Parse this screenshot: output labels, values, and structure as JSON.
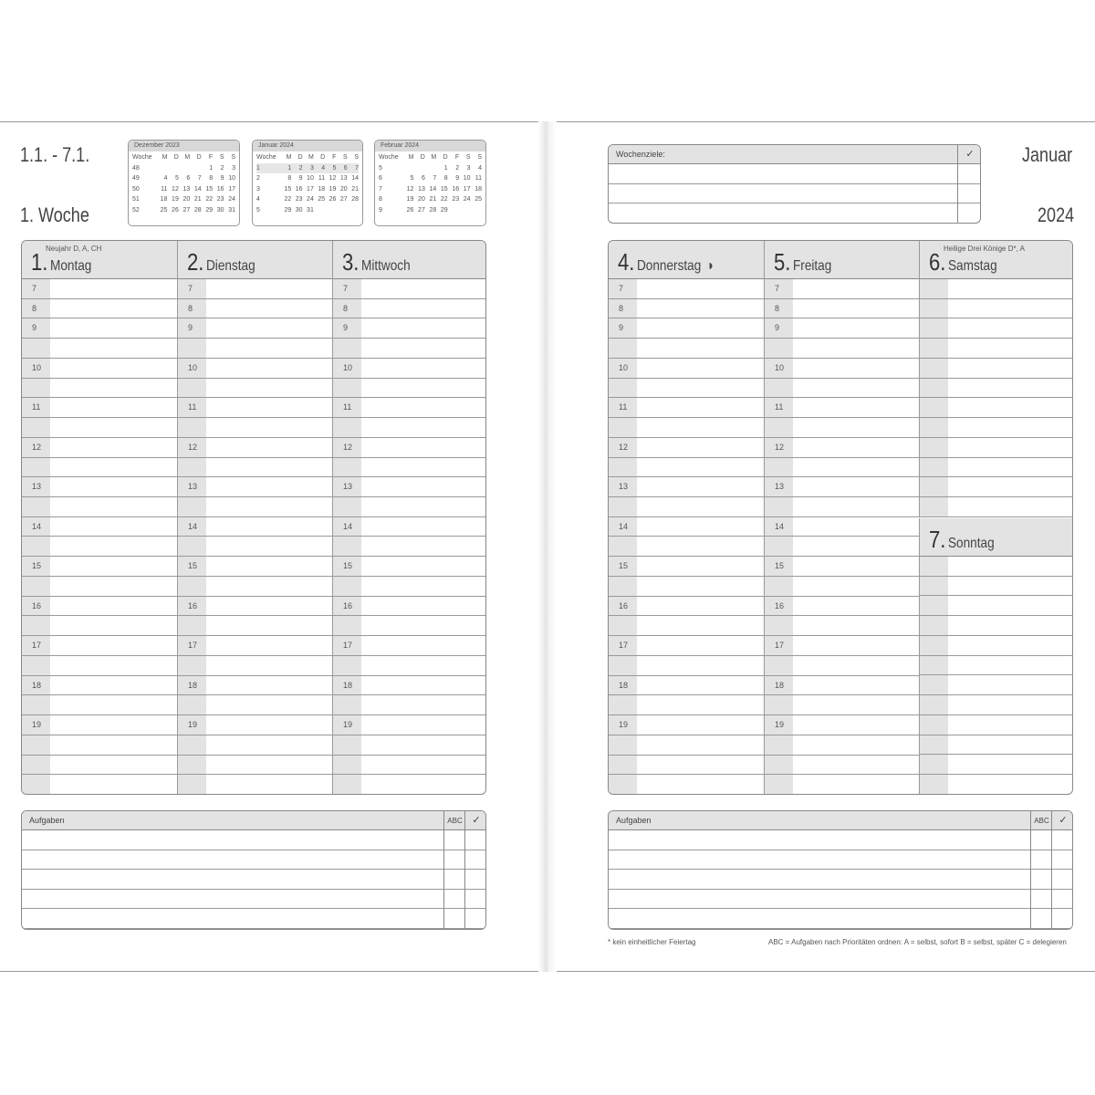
{
  "left": {
    "range": "1.1. - 7.1.",
    "week": "1. Woche",
    "minicals": [
      {
        "title": "Dezember 2023",
        "head": [
          "Woche",
          "M",
          "D",
          "M",
          "D",
          "F",
          "S",
          "S"
        ],
        "rows": [
          [
            "48",
            "",
            "",
            "",
            "",
            "1",
            "2",
            "3"
          ],
          [
            "49",
            "4",
            "5",
            "6",
            "7",
            "8",
            "9",
            "10"
          ],
          [
            "50",
            "11",
            "12",
            "13",
            "14",
            "15",
            "16",
            "17"
          ],
          [
            "51",
            "18",
            "19",
            "20",
            "21",
            "22",
            "23",
            "24"
          ],
          [
            "52",
            "25",
            "26",
            "27",
            "28",
            "29",
            "30",
            "31"
          ]
        ],
        "highlight": -1
      },
      {
        "title": "Januar 2024",
        "head": [
          "Woche",
          "M",
          "D",
          "M",
          "D",
          "F",
          "S",
          "S"
        ],
        "rows": [
          [
            "1",
            "1",
            "2",
            "3",
            "4",
            "5",
            "6",
            "7"
          ],
          [
            "2",
            "8",
            "9",
            "10",
            "11",
            "12",
            "13",
            "14"
          ],
          [
            "3",
            "15",
            "16",
            "17",
            "18",
            "19",
            "20",
            "21"
          ],
          [
            "4",
            "22",
            "23",
            "24",
            "25",
            "26",
            "27",
            "28"
          ],
          [
            "5",
            "29",
            "30",
            "31",
            "",
            "",
            "",
            ""
          ]
        ],
        "highlight": 0
      },
      {
        "title": "Februar 2024",
        "head": [
          "Woche",
          "M",
          "D",
          "M",
          "D",
          "F",
          "S",
          "S"
        ],
        "rows": [
          [
            "5",
            "",
            "",
            "",
            "1",
            "2",
            "3",
            "4"
          ],
          [
            "6",
            "5",
            "6",
            "7",
            "8",
            "9",
            "10",
            "11"
          ],
          [
            "7",
            "12",
            "13",
            "14",
            "15",
            "16",
            "17",
            "18"
          ],
          [
            "8",
            "19",
            "20",
            "21",
            "22",
            "23",
            "24",
            "25"
          ],
          [
            "9",
            "26",
            "27",
            "28",
            "29",
            "",
            "",
            ""
          ]
        ],
        "highlight": -1
      }
    ],
    "days": [
      {
        "num": "1.",
        "name": "Montag",
        "holiday": "Neujahr D, A, CH",
        "symbol": ""
      },
      {
        "num": "2.",
        "name": "Dienstag",
        "holiday": "",
        "symbol": ""
      },
      {
        "num": "3.",
        "name": "Mittwoch",
        "holiday": "",
        "symbol": ""
      }
    ],
    "tasks": {
      "label": "Aufgaben",
      "abc": "ABC",
      "check": "✓"
    }
  },
  "right": {
    "goals": {
      "label": "Wochenziele:",
      "check": "✓"
    },
    "month": "Januar",
    "year": "2024",
    "days": [
      {
        "num": "4.",
        "name": "Donnerstag",
        "holiday": "",
        "symbol": "◑"
      },
      {
        "num": "5.",
        "name": "Freitag",
        "holiday": "",
        "symbol": ""
      },
      {
        "num": "6.",
        "name": "Samstag",
        "holiday": "Heilige Drei Könige D*, A",
        "symbol": ""
      },
      {
        "num": "7.",
        "name": "Sonntag",
        "holiday": "",
        "symbol": ""
      }
    ],
    "tasks": {
      "label": "Aufgaben",
      "abc": "ABC",
      "check": "✓"
    },
    "footnote_left": "* kein einheitlicher Feiertag",
    "footnote_right": "ABC = Aufgaben nach Prioritäten ordnen: A = selbst, sofort   B = selbst, später   C = delegieren"
  },
  "hours": [
    "7",
    "8",
    "9",
    "",
    "10",
    "",
    "11",
    "",
    "12",
    "",
    "13",
    "",
    "14",
    "",
    "15",
    "",
    "16",
    "",
    "17",
    "",
    "18",
    "",
    "19",
    "",
    "",
    ""
  ]
}
